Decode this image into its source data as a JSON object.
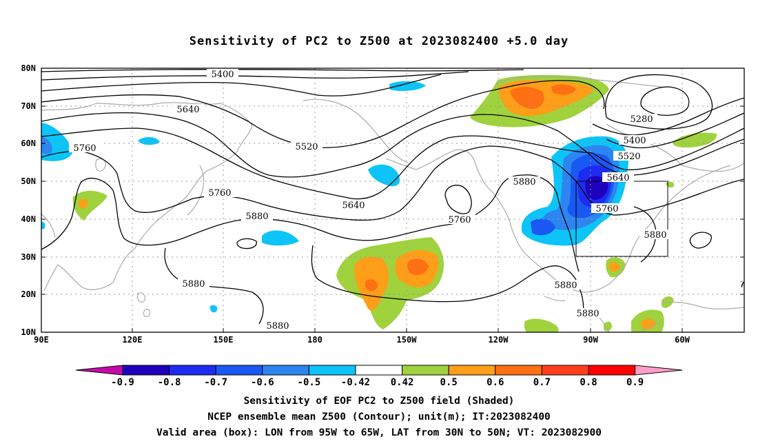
{
  "title": "Sensitivity of PC2 to Z500 at 2023082400 +5.0 day",
  "axes": {
    "lat_labels": [
      "80N",
      "70N",
      "60N",
      "50N",
      "40N",
      "30N",
      "20N",
      "10N"
    ],
    "lon_labels": [
      "90E",
      "120E",
      "150E",
      "180",
      "150W",
      "120W",
      "90W",
      "60W"
    ]
  },
  "contour_labels": [
    "5400",
    "5640",
    "5760",
    "5520",
    "5640",
    "5760",
    "5880",
    "5880",
    "5880",
    "5760",
    "5880",
    "5280",
    "5400",
    "5520",
    "5640",
    "5760",
    "5880",
    "5880",
    "5880"
  ],
  "colorbar": {
    "ticks": [
      "-0.9",
      "-0.8",
      "-0.7",
      "-0.6",
      "-0.5",
      "-0.42",
      "0.42",
      "0.5",
      "0.6",
      "0.7",
      "0.8",
      "0.9"
    ],
    "colors": [
      "#1f00bd",
      "#1d2cf0",
      "#1a58f3",
      "#2c85f0",
      "#0cc4f7",
      "#ffffff",
      "#9fd23d",
      "#ff9e18",
      "#ff6f14",
      "#ff3f1c",
      "#ff0000"
    ],
    "low_end_color": "#c40ba8",
    "high_end_color": "#ff9ec8"
  },
  "caption": {
    "line1": "Sensitivity of EOF PC2 to Z500 field (Shaded)",
    "line2": "NCEP ensemble mean Z500 (Contour); unit(m); IT:2023082400",
    "line3": "Valid area (box): LON from 95W to 65W, LAT from 30N to 50N; VT: 2023082900"
  },
  "valid_box": {
    "lon_west": "95W",
    "lon_east": "65W",
    "lat_south": "30N",
    "lat_north": "50N"
  }
}
